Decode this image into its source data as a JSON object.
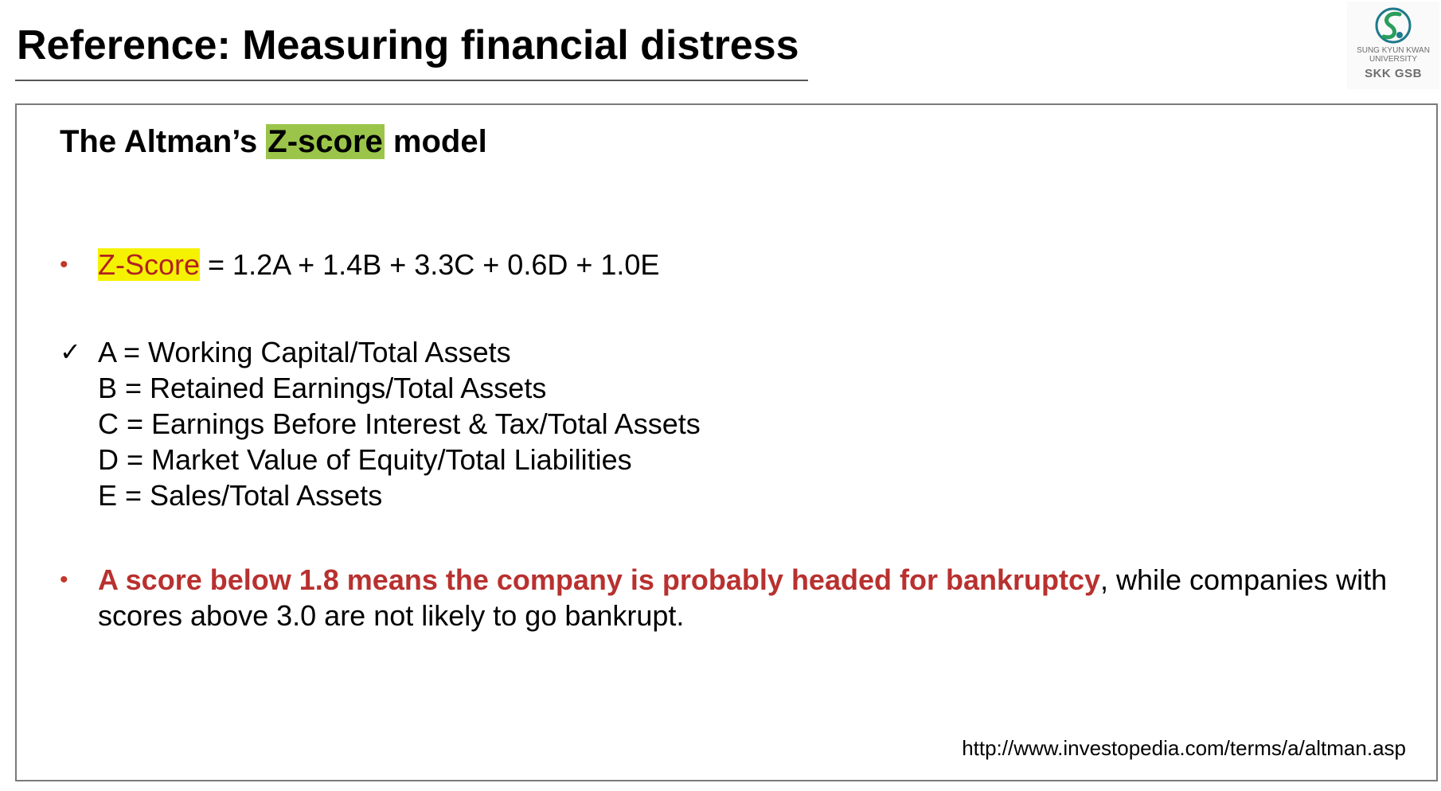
{
  "header": {
    "title": "Reference: Measuring financial distress"
  },
  "logo": {
    "university": "SUNG KYUN KWAN UNIVERSITY",
    "school": "SKK GSB",
    "icon": "skku-emblem-icon"
  },
  "content": {
    "subtitle_before": "The Altman’s ",
    "subtitle_highlight": "Z-score",
    "subtitle_after": " model",
    "formula": {
      "bullet": "•",
      "label": "Z-Score",
      "expression": " = 1.2A + 1.4B + 3.3C + 0.6D + 1.0E"
    },
    "definitions": {
      "check": "✓",
      "items": [
        "A = Working Capital/Total Assets",
        "B = Retained Earnings/Total Assets",
        "C = Earnings Before Interest & Tax/Total Assets",
        "D = Market Value of Equity/Total Liabilities",
        "E = Sales/Total Assets"
      ]
    },
    "conclusion": {
      "bullet": "•",
      "emphasis": "A score below 1.8 means the company is probably headed for bankruptcy",
      "rest": ", while companies with scores above 3.0 are not likely to go bankrupt."
    },
    "source": "http://www.investopedia.com/terms/a/altman.asp"
  },
  "colors": {
    "accent_red": "#b8312f",
    "highlight_green": "#9bc54a",
    "highlight_yellow": "#f5f200",
    "logo_teal": "#1f7a8c"
  }
}
